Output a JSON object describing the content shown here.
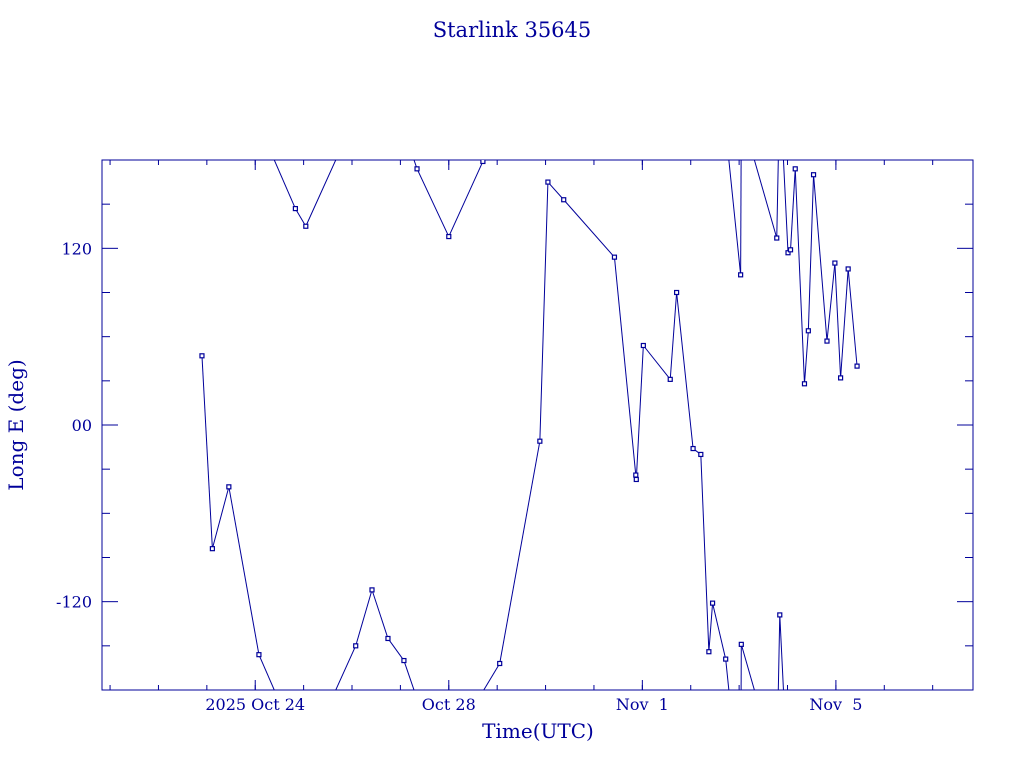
{
  "chart_data": {
    "type": "line",
    "title": "Starlink 35645",
    "xlabel": "Time(UTC)",
    "ylabel": "Long E (deg)",
    "x_ticks": [
      {
        "x": "2025-10-24",
        "label": "2025 Oct 24"
      },
      {
        "x": "2025-10-28",
        "label": "Oct 28"
      },
      {
        "x": "2025-11-01",
        "label": "Nov  1"
      },
      {
        "x": "2025-11-05",
        "label": "Nov  5"
      }
    ],
    "y_ticks": [
      {
        "y": -120,
        "label": "-120"
      },
      {
        "y": 0,
        "label": "00"
      },
      {
        "y": 120,
        "label": "120"
      }
    ],
    "xlim": [
      "2025-10-20T20:00",
      "2025-11-07T20:00"
    ],
    "ylim": [
      -180,
      180
    ],
    "grid": false,
    "series": [
      {
        "points": [
          {
            "x": "2025-10-22T21:35",
            "y": 47
          },
          {
            "x": "2025-10-23T02:45",
            "y": -84
          },
          {
            "x": "2025-10-23T10:55",
            "y": -42
          },
          {
            "x": "2025-10-24T01:50",
            "y": -156
          },
          {
            "x": "2025-10-24T19:55",
            "y": 147
          },
          {
            "x": "2025-10-25T01:05",
            "y": 135
          },
          {
            "x": "2025-10-26T01:50",
            "y": -150
          },
          {
            "x": "2025-10-26T09:55",
            "y": -112
          },
          {
            "x": "2025-10-26T17:50",
            "y": -145
          },
          {
            "x": "2025-10-27T01:45",
            "y": -160
          },
          {
            "x": "2025-10-27T08:15",
            "y": 174
          },
          {
            "x": "2025-10-28T00:00",
            "y": 128
          },
          {
            "x": "2025-10-28T16:55",
            "y": 179
          },
          {
            "x": "2025-10-29T01:15",
            "y": -162
          },
          {
            "x": "2025-10-29T21:10",
            "y": -11
          },
          {
            "x": "2025-10-30T01:10",
            "y": 165
          },
          {
            "x": "2025-10-30T09:00",
            "y": 153
          },
          {
            "x": "2025-10-31T10:10",
            "y": 114
          },
          {
            "x": "2025-10-31T20:45",
            "y": -34
          },
          {
            "x": "2025-10-31T21:00",
            "y": -37
          },
          {
            "x": "2025-11-01T00:30",
            "y": 54
          },
          {
            "x": "2025-11-01T13:50",
            "y": 31
          },
          {
            "x": "2025-11-01T17:00",
            "y": 90
          },
          {
            "x": "2025-11-02T01:10",
            "y": -16
          },
          {
            "x": "2025-11-02T05:00",
            "y": -20
          },
          {
            "x": "2025-11-02T09:00",
            "y": -154
          },
          {
            "x": "2025-11-02T10:50",
            "y": -121
          },
          {
            "x": "2025-11-02T17:20",
            "y": -159
          },
          {
            "x": "2025-11-03T00:45",
            "y": 102
          },
          {
            "x": "2025-11-03T01:05",
            "y": -149
          },
          {
            "x": "2025-11-03T18:40",
            "y": 127
          },
          {
            "x": "2025-11-03T20:10",
            "y": -129
          },
          {
            "x": "2025-11-04T00:15",
            "y": 117
          },
          {
            "x": "2025-11-04T01:30",
            "y": 119
          },
          {
            "x": "2025-11-04T03:50",
            "y": 174
          },
          {
            "x": "2025-11-04T08:25",
            "y": 28
          },
          {
            "x": "2025-11-04T10:20",
            "y": 64
          },
          {
            "x": "2025-11-04T12:55",
            "y": 170
          },
          {
            "x": "2025-11-04T19:35",
            "y": 57
          },
          {
            "x": "2025-11-04T23:30",
            "y": 110
          },
          {
            "x": "2025-11-05T02:20",
            "y": 32
          },
          {
            "x": "2025-11-05T06:05",
            "y": 106
          },
          {
            "x": "2025-11-05T10:30",
            "y": 40
          }
        ]
      }
    ]
  }
}
